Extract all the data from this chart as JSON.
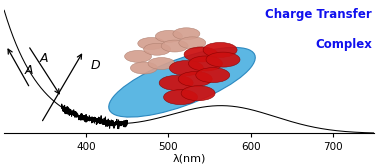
{
  "title_line1": "Charge Transfer",
  "title_line2": "Complex",
  "title_color": "#1010ee",
  "title_fontsize": 8.5,
  "xlabel": "λ(nm)",
  "xlabel_fontsize": 8,
  "xlim": [
    300,
    750
  ],
  "xticks": [
    400,
    500,
    600,
    700
  ],
  "ylim": [
    0,
    1.05
  ],
  "bg_color": "#ffffff",
  "curve_color": "#000000",
  "label_D": "D",
  "label_A": "A",
  "arrow_color": "#000000",
  "blue_ellipse_color": "#4ab0e0",
  "blue_ellipse_edge": "#2080bb",
  "pink_sphere_color": "#d4a090",
  "pink_sphere_edge": "#b08070",
  "red_sphere_color": "#cc1010",
  "red_sphere_edge": "#880000"
}
